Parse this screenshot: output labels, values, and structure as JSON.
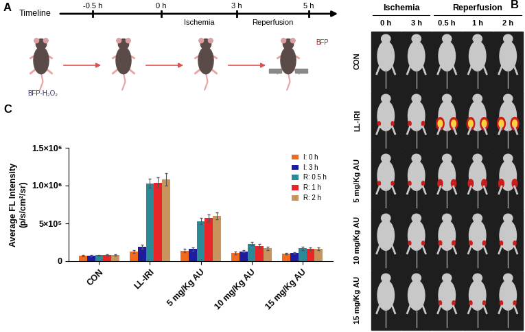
{
  "panel_labels": [
    "A",
    "B",
    "C"
  ],
  "timeline": {
    "title": "Timeline",
    "times": [
      "-0.5 h",
      "0 h",
      "3 h",
      "5 h"
    ],
    "phases": [
      "Ischemia",
      "Reperfusion"
    ],
    "probe": "BFP-H₂O₂",
    "product": "BFP"
  },
  "image_grid": {
    "groups": [
      {
        "label": "Ischemia",
        "columns": [
          "0 h",
          "3 h"
        ]
      },
      {
        "label": "Reperfusion",
        "columns": [
          "0.5 h",
          "1 h",
          "2 h"
        ]
      }
    ],
    "rows": [
      "CON",
      "LL-IRI",
      "5 mg/Kg AU",
      "10 mg/Kg AU",
      "15 mg/Kg AU"
    ]
  },
  "chart_data": {
    "type": "bar",
    "y_label": "Average FL Intensity\n(p/s/cm²/sr)",
    "categories": [
      "CON",
      "LL-IRI",
      "5 mg/Kg AU",
      "10 mg/Kg AU",
      "15 mg/Kg AU"
    ],
    "series": [
      {
        "name": "I: 0 h",
        "color": "#f26b1d",
        "values": [
          70000,
          130000,
          140000,
          110000,
          100000
        ],
        "errors": [
          8000,
          20000,
          20000,
          15000,
          12000
        ]
      },
      {
        "name": "I: 3 h",
        "color": "#1c1c9c",
        "values": [
          72000,
          190000,
          160000,
          130000,
          110000
        ],
        "errors": [
          8000,
          25000,
          20000,
          15000,
          12000
        ]
      },
      {
        "name": "R: 0.5 h",
        "color": "#2b8a97",
        "values": [
          78000,
          1030000,
          530000,
          230000,
          170000
        ],
        "errors": [
          8000,
          60000,
          40000,
          25000,
          20000
        ]
      },
      {
        "name": "R: 1 h",
        "color": "#e8262a",
        "values": [
          80000,
          1040000,
          570000,
          200000,
          160000
        ],
        "errors": [
          8000,
          70000,
          45000,
          25000,
          18000
        ]
      },
      {
        "name": "R: 2 h",
        "color": "#c8945c",
        "values": [
          80000,
          1080000,
          600000,
          170000,
          160000
        ],
        "errors": [
          9000,
          80000,
          45000,
          20000,
          18000
        ]
      }
    ],
    "ylim": [
      0,
      1500000
    ],
    "yticks": [
      0,
      {
        "value": 500000,
        "label": "5×10⁵"
      },
      {
        "value": 1000000,
        "label": "1.0×10⁶"
      },
      {
        "value": 1500000,
        "label": "1.5×10⁶"
      }
    ],
    "legend": "upper right"
  }
}
